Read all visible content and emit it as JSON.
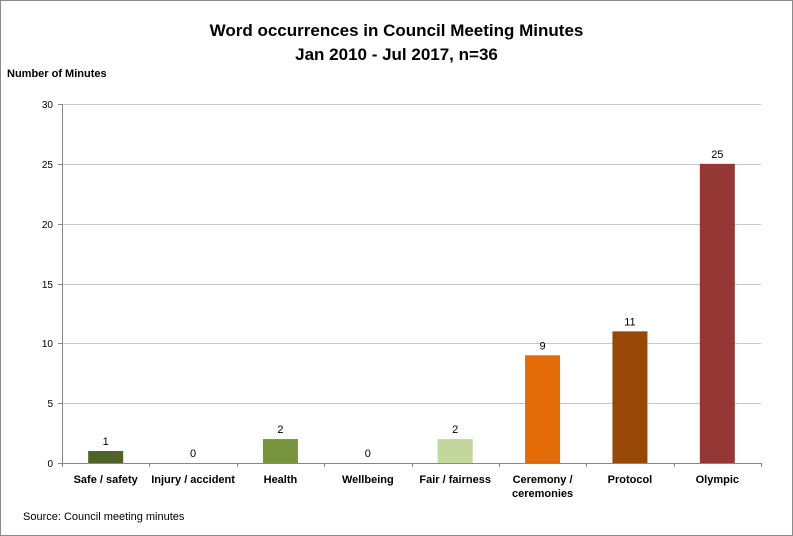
{
  "chart_data": {
    "type": "bar",
    "title": "Word occurrences in Council Meeting Minutes",
    "subtitle": "Jan 2010 - Jul 2017, n=36",
    "ylabel": "Number of Minutes",
    "xlabel": "",
    "source": "Source: Council meeting minutes",
    "ylim": [
      0,
      30
    ],
    "yticks": [
      0,
      5,
      10,
      15,
      20,
      25,
      30
    ],
    "grid": true,
    "categories": [
      "Safe / safety",
      "Injury / accident",
      "Health",
      "Wellbeing",
      "Fair / fairness",
      "Ceremony / ceremonies",
      "Protocol",
      "Olympic"
    ],
    "category_lines": [
      [
        "Safe / safety"
      ],
      [
        "Injury / accident"
      ],
      [
        "Health"
      ],
      [
        "Wellbeing"
      ],
      [
        "Fair / fairness"
      ],
      [
        "Ceremony /",
        "ceremonies"
      ],
      [
        "Protocol"
      ],
      [
        "Olympic"
      ]
    ],
    "values": [
      1,
      0,
      2,
      0,
      2,
      9,
      11,
      25
    ],
    "colors": [
      "#4f6228",
      "#4f6228",
      "#77933c",
      "#77933c",
      "#c3d69b",
      "#e36c09",
      "#984807",
      "#953735"
    ]
  }
}
